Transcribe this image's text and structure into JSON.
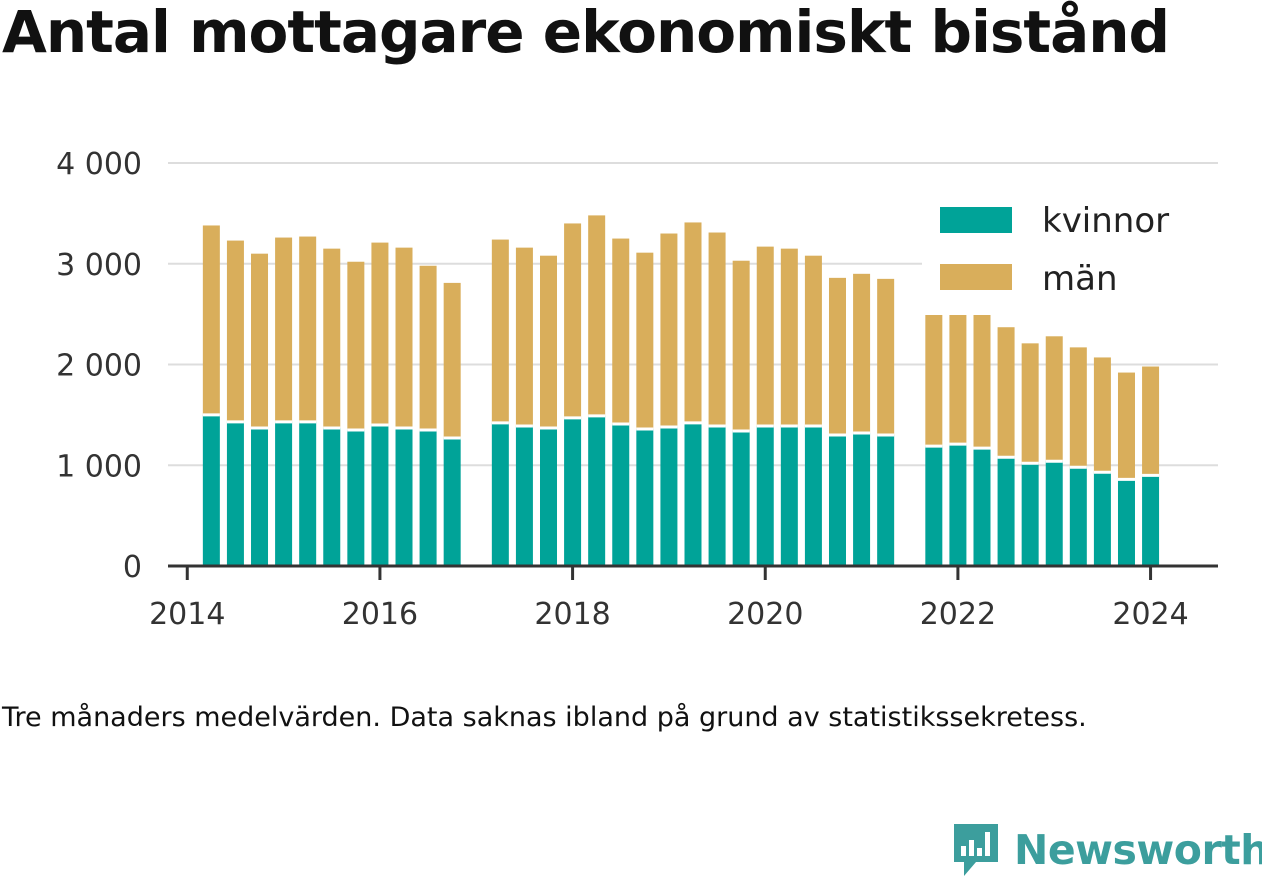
{
  "title": "Antal mottagare ekonomiskt bistånd",
  "caption": "Tre månaders medelvärden. Data saknas ibland på grund av statistikssekretess.",
  "brand": {
    "name": "Newsworthy",
    "logo_icon": "newsworthy-chart-bubble-icon",
    "color": "#3c9e9d"
  },
  "colors": {
    "kvinnor": "#00a398",
    "man": "#d9ae5b",
    "grid": "#dddddd",
    "axis": "#333333"
  },
  "chart_data": {
    "type": "bar",
    "stacked": true,
    "title": "Antal mottagare ekonomiskt bistånd",
    "xlabel": "",
    "ylabel": "",
    "ylim": [
      0,
      4000
    ],
    "xlim": [
      2013.8,
      2024.7
    ],
    "yticks": [
      0,
      1000,
      2000,
      3000,
      4000
    ],
    "ytick_labels": [
      "0",
      "1 000",
      "2 000",
      "3 000",
      "4 000"
    ],
    "xticks": [
      2014,
      2016,
      2018,
      2020,
      2022,
      2024
    ],
    "xtick_labels": [
      "2014",
      "2016",
      "2018",
      "2020",
      "2022",
      "2024"
    ],
    "grid": true,
    "legend_position": "top-right",
    "x": [
      2014.25,
      2014.5,
      2014.75,
      2015.0,
      2015.25,
      2015.5,
      2015.75,
      2016.0,
      2016.25,
      2016.5,
      2016.75,
      2017.25,
      2017.5,
      2017.75,
      2018.0,
      2018.25,
      2018.5,
      2018.75,
      2019.0,
      2019.25,
      2019.5,
      2019.75,
      2020.0,
      2020.25,
      2020.5,
      2020.75,
      2021.0,
      2021.25,
      2021.75,
      2022.0,
      2022.25,
      2022.5,
      2022.75,
      2023.0,
      2023.25,
      2023.5,
      2023.75,
      2024.0
    ],
    "series": [
      {
        "name": "kvinnor",
        "values": [
          1500,
          1430,
          1370,
          1430,
          1430,
          1370,
          1350,
          1400,
          1370,
          1350,
          1270,
          1420,
          1390,
          1370,
          1470,
          1490,
          1410,
          1360,
          1380,
          1420,
          1390,
          1340,
          1390,
          1390,
          1390,
          1300,
          1320,
          1300,
          1190,
          1210,
          1170,
          1080,
          1020,
          1040,
          980,
          930,
          860,
          900
        ]
      },
      {
        "name": "män",
        "values": [
          1880,
          1800,
          1730,
          1830,
          1840,
          1780,
          1670,
          1810,
          1790,
          1630,
          1540,
          1820,
          1770,
          1710,
          1930,
          1990,
          1840,
          1750,
          1920,
          1990,
          1920,
          1690,
          1780,
          1760,
          1690,
          1560,
          1580,
          1550,
          1310,
          1290,
          1330,
          1290,
          1190,
          1240,
          1190,
          1140,
          1060,
          1080
        ]
      }
    ]
  }
}
